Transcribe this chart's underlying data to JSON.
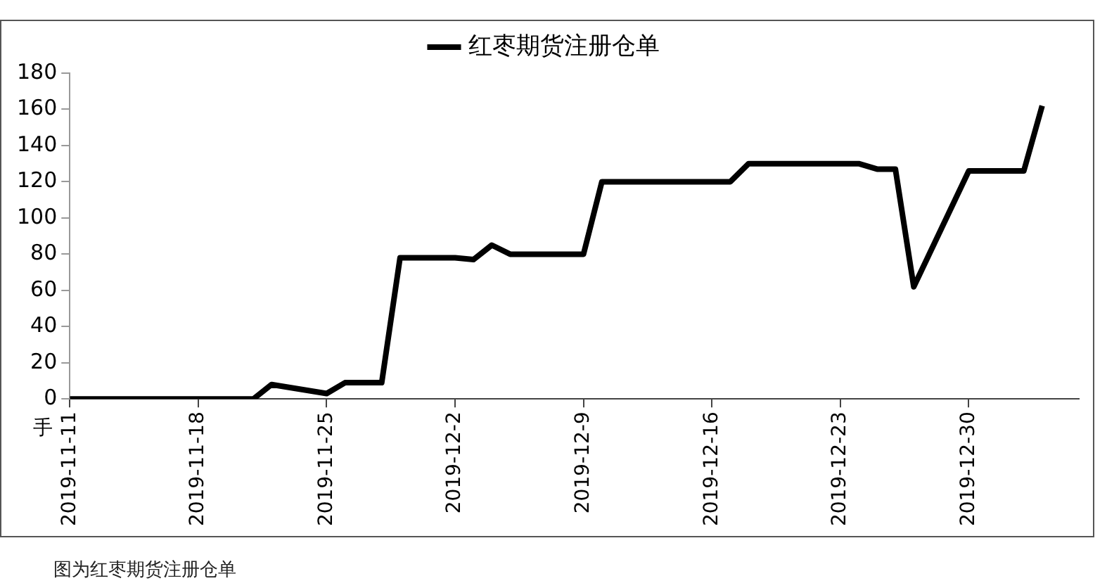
{
  "chart_data": {
    "type": "line",
    "ylabel": "手",
    "legend": "top",
    "marker": "none",
    "line_style": "solid",
    "grid": false,
    "x": [
      "2019-11-11",
      "2019-11-21",
      "2019-11-22",
      "2019-11-25",
      "2019-11-26",
      "2019-11-28",
      "2019-11-29",
      "2019-12-02",
      "2019-12-03",
      "2019-12-04",
      "2019-12-05",
      "2019-12-09",
      "2019-12-10",
      "2019-12-17",
      "2019-12-18",
      "2019-12-24",
      "2019-12-25",
      "2019-12-26",
      "2019-12-27",
      "2019-12-30",
      "2020-01-02",
      "2020-01-03"
    ],
    "series": [
      {
        "name": "红枣期货注册仓单",
        "color": "#000000",
        "values": [
          0,
          0,
          8,
          3,
          9,
          9,
          78,
          78,
          77,
          85,
          80,
          80,
          120,
          120,
          130,
          130,
          127,
          127,
          62,
          126,
          126,
          162
        ]
      }
    ],
    "xlim": [
      "2019-11-11",
      "2020-01-05"
    ],
    "xticks": [
      {
        "value": "2019-11-11",
        "label": "2019-11-11"
      },
      {
        "value": "2019-11-18",
        "label": "2019-11-18"
      },
      {
        "value": "2019-11-25",
        "label": "2019-11-25"
      },
      {
        "value": "2019-12-02",
        "label": "2019-12-2"
      },
      {
        "value": "2019-12-09",
        "label": "2019-12-9"
      },
      {
        "value": "2019-12-16",
        "label": "2019-12-16"
      },
      {
        "value": "2019-12-23",
        "label": "2019-12-23"
      },
      {
        "value": "2019-12-30",
        "label": "2019-12-30"
      }
    ],
    "ylim": [
      0,
      180
    ],
    "yticks": [
      0,
      20,
      40,
      60,
      80,
      100,
      120,
      140,
      160,
      180
    ],
    "annotations": [
      "图为红枣期货注册仓单"
    ]
  }
}
